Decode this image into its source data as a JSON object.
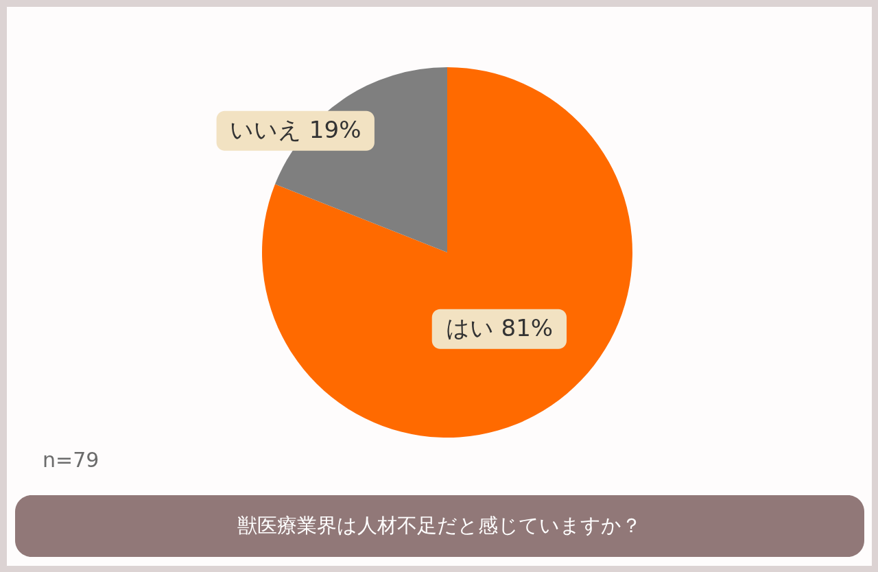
{
  "chart_data": {
    "type": "pie",
    "title": "獣医療業界は人材不足だと感じていますか？",
    "categories": [
      "はい",
      "いいえ"
    ],
    "values": [
      81,
      19
    ],
    "colors": [
      "#ff6a00",
      "#7f7f7f"
    ],
    "value_labels": [
      "81%",
      "19%"
    ],
    "annotations": [
      "n=79"
    ]
  }
}
